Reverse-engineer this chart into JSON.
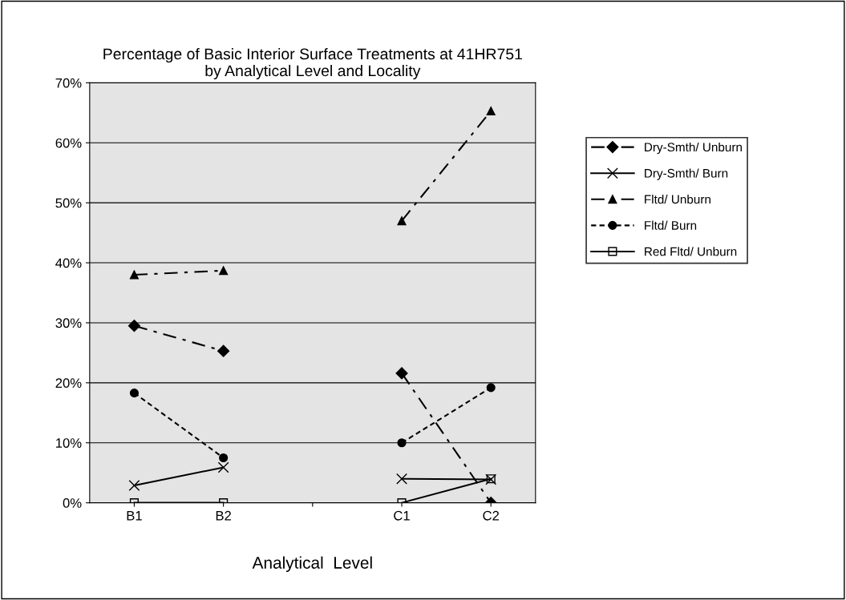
{
  "chart_data": {
    "type": "line",
    "title": "Percentage of Basic Interior Surface Treatments at 41HR751\nby Analytical Level and Locality",
    "xlabel": "Analytical  Level",
    "categories": [
      "B1",
      "B2",
      null,
      "C1",
      "C2"
    ],
    "series": [
      {
        "name": "Dry-Smth/ Unburn",
        "color": "#000000",
        "marker": "diamond",
        "line_style": "dashed",
        "values": [
          29.5,
          25.3,
          null,
          21.6,
          0
        ]
      },
      {
        "name": "Dry-Smth/ Burn",
        "color": "#000000",
        "marker": "cross",
        "line_style": "solid",
        "values": [
          2.9,
          5.9,
          null,
          4.0,
          3.9
        ]
      },
      {
        "name": "Fltd/ Unburn",
        "color": "#000000",
        "marker": "triangle",
        "line_style": "dashed",
        "values": [
          38,
          38.7,
          null,
          47,
          65.3
        ]
      },
      {
        "name": "Fltd/ Burn",
        "color": "#000000",
        "marker": "circle",
        "line_style": "dotted",
        "values": [
          18.3,
          7.5,
          null,
          10,
          19.2
        ]
      },
      {
        "name": "Red Fltd/ Unburn",
        "color": "#000000",
        "marker": "square",
        "line_style": "solid",
        "values": [
          0,
          0,
          null,
          0,
          4.0
        ]
      }
    ],
    "ylim": [
      0,
      70
    ],
    "yticks": [
      {
        "value": 0,
        "label": "0%"
      },
      {
        "value": 10,
        "label": "10%"
      },
      {
        "value": 20,
        "label": "20%"
      },
      {
        "value": 30,
        "label": "30%"
      },
      {
        "value": 40,
        "label": "40%"
      },
      {
        "value": 50,
        "label": "50%"
      },
      {
        "value": 60,
        "label": "60%"
      },
      {
        "value": 70,
        "label": "70%"
      }
    ],
    "grid": "y",
    "legend": "right"
  }
}
